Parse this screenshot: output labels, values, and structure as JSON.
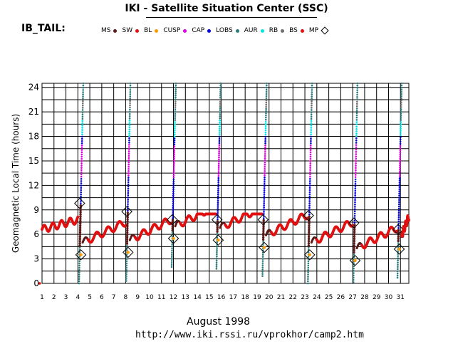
{
  "header": {
    "title": "IKI - Satellite Situation Center (SSC)",
    "satellite": "IB_TAIL:"
  },
  "footer": {
    "month": "August    1998",
    "url": "http://www.iki.rssi.ru/vprokhor/camp2.htm"
  },
  "legend": [
    {
      "label": "MS",
      "color": "#5a1a1a",
      "marker": "dot"
    },
    {
      "label": "SW",
      "color": "#e11111",
      "marker": "dot"
    },
    {
      "label": "BL",
      "color": "#ff9900",
      "marker": "dot"
    },
    {
      "label": "CUSP",
      "color": "#e000e0",
      "marker": "dot"
    },
    {
      "label": "CAP",
      "color": "#0000e0",
      "marker": "dot"
    },
    {
      "label": "LOBS",
      "color": "#2e7b7b",
      "marker": "dot"
    },
    {
      "label": "AUR",
      "color": "#00e5e5",
      "marker": "dot"
    },
    {
      "label": "RB",
      "color": "#707070",
      "marker": "dot"
    },
    {
      "label": "BS",
      "color": "#e11111",
      "marker": "dot"
    },
    {
      "label": "MP",
      "color": "#000000",
      "marker": "diamond"
    }
  ],
  "chart_data": {
    "type": "scatter",
    "title": "IKI - Satellite Situation Center (SSC)",
    "ylabel": "Geomagnetic Local Time (hours)",
    "xlabel": "August    1998",
    "xlim": [
      1,
      31.7
    ],
    "ylim": [
      0,
      24.5
    ],
    "x_ticks": [
      1,
      2,
      3,
      4,
      5,
      6,
      7,
      8,
      9,
      10,
      11,
      12,
      13,
      14,
      15,
      16,
      17,
      18,
      19,
      20,
      21,
      22,
      23,
      24,
      25,
      26,
      27,
      28,
      29,
      30,
      31
    ],
    "y_ticks": [
      0,
      3,
      6,
      9,
      12,
      15,
      18,
      21,
      24
    ],
    "grid": true,
    "orbits": [
      {
        "start_day": 4.25,
        "start_glt": 3.5,
        "mp_in_glt": 9.8
      },
      {
        "start_day": 8.2,
        "start_glt": 3.8,
        "mp_in_glt": 8.8
      },
      {
        "start_day": 12.0,
        "start_glt": 5.5,
        "mp_in_glt": 7.8
      },
      {
        "start_day": 15.75,
        "start_glt": 5.3,
        "mp_in_glt": 7.8
      },
      {
        "start_day": 19.6,
        "start_glt": 4.4,
        "mp_in_glt": 7.8
      },
      {
        "start_day": 23.4,
        "start_glt": 3.5,
        "mp_in_glt": 8.3
      },
      {
        "start_day": 27.2,
        "start_glt": 2.8,
        "mp_in_glt": 7.4
      },
      {
        "start_day": 30.9,
        "start_glt": 4.2,
        "mp_in_glt": 6.6
      }
    ],
    "solar_wind_glt_range": [
      5.5,
      8.0
    ],
    "extra_point": {
      "day": 0.8,
      "glt": 0,
      "region": "SW"
    }
  }
}
